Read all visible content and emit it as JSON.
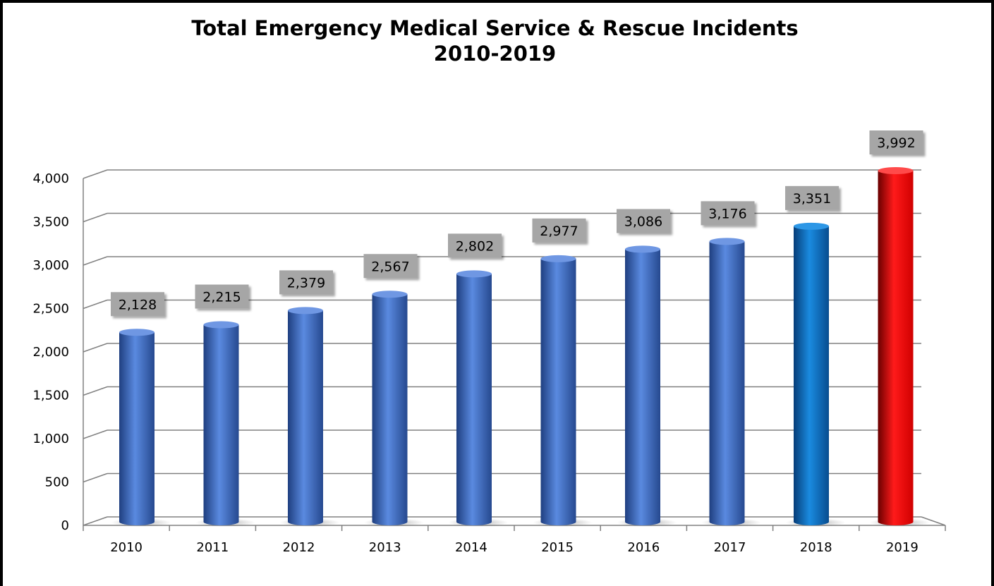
{
  "chart_data": {
    "type": "bar",
    "title": "Total Emergency Medical Service & Rescue Incidents",
    "subtitle": "2010-2019",
    "categories": [
      "2010",
      "2011",
      "2012",
      "2013",
      "2014",
      "2015",
      "2016",
      "2017",
      "2018",
      "2019"
    ],
    "values": [
      2128,
      2215,
      2379,
      2567,
      2802,
      2977,
      3086,
      3176,
      3351,
      3992
    ],
    "data_labels": [
      "2,128",
      "2,215",
      "2,379",
      "2,567",
      "2,802",
      "2,977",
      "3,086",
      "3,176",
      "3,351",
      "3,992"
    ],
    "y_ticks": [
      "0",
      "500",
      "1,000",
      "1,500",
      "2,000",
      "2,500",
      "3,000",
      "3,500",
      "4,000"
    ],
    "ylim": [
      0,
      4000
    ],
    "xlabel": "",
    "ylabel": "",
    "grid": true,
    "legend": "none",
    "colors": {
      "default": "#3f6fc9",
      "2018": "#0b74c9",
      "2019": "#ff1010",
      "label_box": "#a6a6a6",
      "grid": "#808080"
    }
  }
}
